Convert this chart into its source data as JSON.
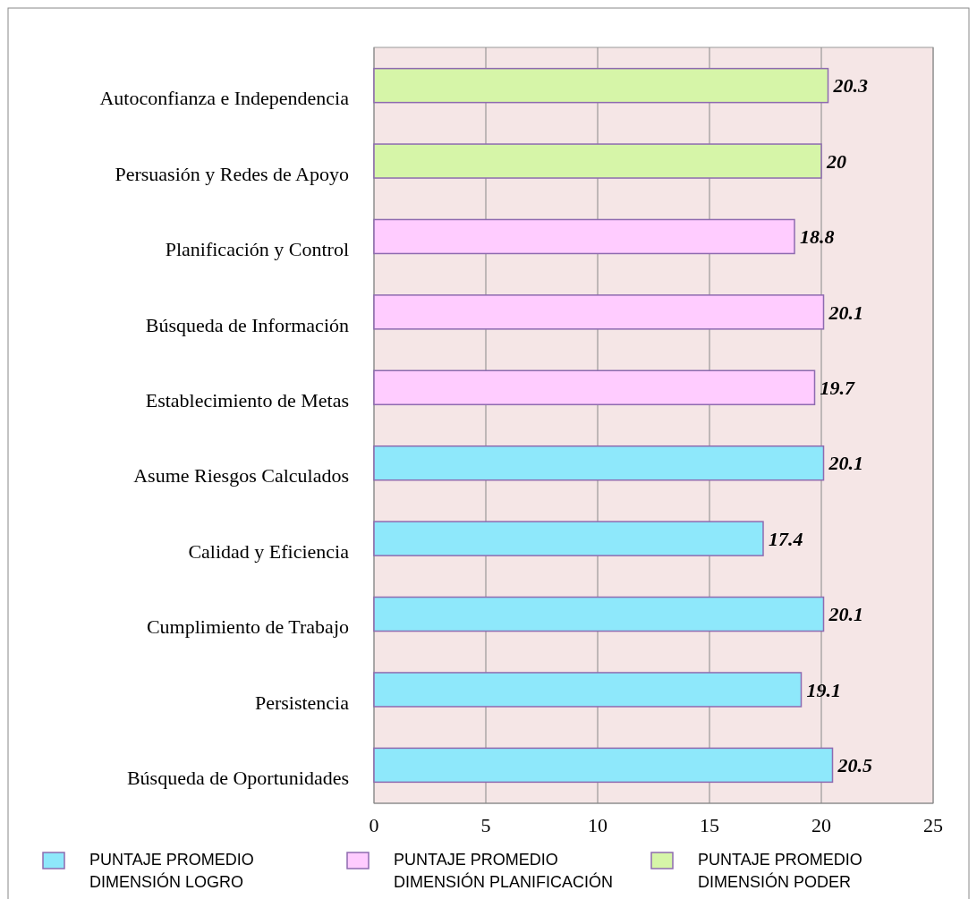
{
  "chart_data": {
    "type": "bar",
    "orientation": "horizontal",
    "categories": [
      "Autoconfianza e Independencia",
      "Persuasión y Redes de Apoyo",
      "Planificación y Control",
      "Búsqueda de Información",
      "Establecimiento de Metas",
      "Asume Riesgos Calculados",
      "Calidad y Eficiencia",
      "Cumplimiento de Trabajo",
      "Persistencia",
      "Búsqueda de Oportunidades"
    ],
    "series": [
      {
        "name": "PUNTAJE PROMEDIO DIMENSIÓN LOGRO",
        "color": "#8ee8fb",
        "values": [
          null,
          null,
          null,
          null,
          null,
          20.1,
          17.4,
          20.1,
          19.1,
          20.5
        ]
      },
      {
        "name": "PUNTAJE PROMEDIO DIMENSIÓN PLANIFICACIÓN",
        "color": "#ffccff",
        "values": [
          null,
          null,
          18.8,
          20.1,
          19.7,
          null,
          null,
          null,
          null,
          null
        ]
      },
      {
        "name": "PUNTAJE PROMEDIO DIMENSIÓN PODER",
        "color": "#d6f5a8",
        "values": [
          20.3,
          20,
          null,
          null,
          null,
          null,
          null,
          null,
          null,
          null
        ]
      }
    ],
    "xlim": [
      0,
      25
    ],
    "xticks": [
      0,
      5,
      10,
      15,
      20,
      25
    ],
    "grid": "x",
    "legend": "bottom",
    "data_labels": true
  }
}
